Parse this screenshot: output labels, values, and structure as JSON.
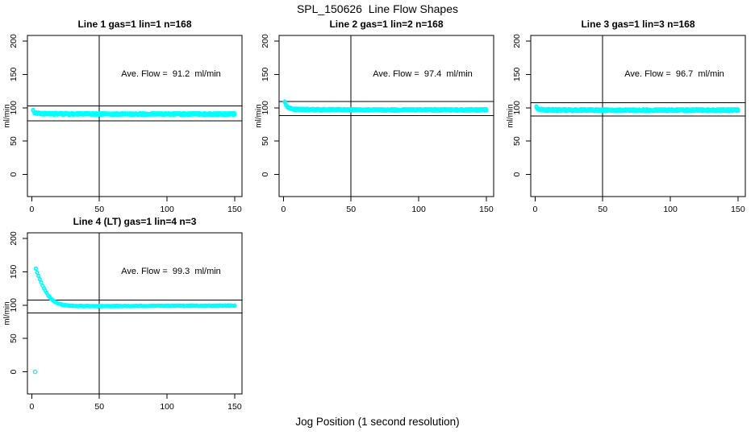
{
  "page": {
    "title": "SPL_150626  Line Flow Shapes",
    "xlabel": "Jog Position (1 second resolution)",
    "background": "#FFFFFF",
    "point_color": "#00FFFF",
    "line_color": "#000000"
  },
  "chart_data": [
    {
      "type": "scatter",
      "title": "Line 1 gas=1 lin=1 n=168",
      "annotation": "Ave. Flow =  91.2  ml/min",
      "ave_flow_ml_min": 91.2,
      "n": 168,
      "gas": 1,
      "lin": 1,
      "ylabel": "ml/min",
      "x_ticks": [
        0,
        50,
        100,
        150
      ],
      "y_ticks": [
        0,
        50,
        100,
        150,
        200
      ],
      "xlim": [
        -3.2,
        155.4
      ],
      "ylim": [
        -33.2,
        208.5
      ],
      "vline_x": 50,
      "hlines": [
        103.0,
        80.4
      ],
      "marker": "open-circle",
      "marker_color": "#00FFFF",
      "profile_x": [
        1,
        2,
        4,
        7,
        12,
        30,
        80,
        150
      ],
      "profile_y": [
        95.5,
        93,
        91.8,
        91.3,
        91,
        90.8,
        90.7,
        90.6
      ],
      "outliers": [],
      "runs_drawn": 5,
      "jitter": 1.6,
      "x_start": 1,
      "x_end": 150
    },
    {
      "type": "scatter",
      "title": "Line 2 gas=1 lin=2 n=168",
      "annotation": "Ave. Flow =  97.4  ml/min",
      "ave_flow_ml_min": 97.4,
      "n": 168,
      "gas": 1,
      "lin": 2,
      "ylabel": "ml/min",
      "x_ticks": [
        0,
        50,
        100,
        150
      ],
      "y_ticks": [
        0,
        50,
        100,
        150,
        200
      ],
      "xlim": [
        -3.2,
        155.4
      ],
      "ylim": [
        -33.2,
        208.5
      ],
      "vline_x": 50,
      "hlines": [
        109.4,
        88.5
      ],
      "marker": "open-circle",
      "marker_color": "#00FFFF",
      "profile_x": [
        1,
        2,
        3,
        5,
        8,
        12,
        20,
        60,
        150
      ],
      "profile_y": [
        108,
        104.5,
        101.5,
        99,
        97.8,
        97.4,
        97.1,
        96.9,
        96.8
      ],
      "outliers": [],
      "runs_drawn": 5,
      "jitter": 1.5,
      "x_start": 1,
      "x_end": 150
    },
    {
      "type": "scatter",
      "title": "Line 3 gas=1 lin=3 n=168",
      "annotation": "Ave. Flow =  96.7  ml/min",
      "ave_flow_ml_min": 96.7,
      "n": 168,
      "gas": 1,
      "lin": 3,
      "ylabel": "ml/min",
      "x_ticks": [
        0,
        50,
        100,
        150
      ],
      "y_ticks": [
        0,
        50,
        100,
        150,
        200
      ],
      "xlim": [
        -3.2,
        155.4
      ],
      "ylim": [
        -33.2,
        208.5
      ],
      "vline_x": 50,
      "hlines": [
        107.3,
        87.7
      ],
      "marker": "open-circle",
      "marker_color": "#00FFFF",
      "profile_x": [
        1,
        2,
        4,
        8,
        15,
        60,
        150
      ],
      "profile_y": [
        100.5,
        98.5,
        97.2,
        96.7,
        96.5,
        96.4,
        96.4
      ],
      "outliers": [],
      "runs_drawn": 5,
      "jitter": 1.8,
      "x_start": 1,
      "x_end": 150
    },
    {
      "type": "scatter",
      "title": "Line 4 (LT) gas=1 lin=4 n=3",
      "annotation": "Ave. Flow =  99.3  ml/min",
      "ave_flow_ml_min": 99.3,
      "n": 3,
      "gas": 1,
      "lin": 4,
      "ylabel": "ml/min",
      "x_ticks": [
        0,
        50,
        100,
        150
      ],
      "y_ticks": [
        0,
        50,
        100,
        150,
        200
      ],
      "xlim": [
        -3.2,
        155.4
      ],
      "ylim": [
        -33.2,
        208.5
      ],
      "vline_x": 50,
      "hlines": [
        107.8,
        88.4
      ],
      "marker": "open-circle",
      "marker_color": "#00FFFF",
      "profile_x": [
        3,
        4,
        5,
        6,
        7,
        8,
        10,
        12,
        14,
        17,
        20,
        24,
        30,
        40,
        60,
        100,
        150
      ],
      "profile_y": [
        155,
        149,
        143.5,
        138.5,
        134,
        129.5,
        121.5,
        115,
        110,
        105,
        102,
        100,
        99,
        98.5,
        98.7,
        99,
        99.2
      ],
      "outliers": [
        {
          "x": 2.5,
          "y": 0
        }
      ],
      "runs_drawn": 3,
      "jitter": 0.7,
      "x_start": 3,
      "x_end": 150
    }
  ]
}
